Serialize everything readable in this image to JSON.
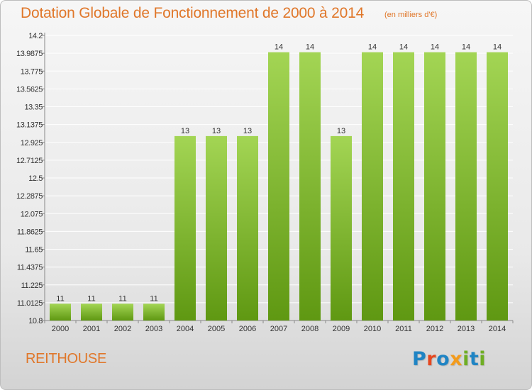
{
  "header": {
    "title": "Dotation Globale de Fonctionnement de 2000 à 2014",
    "unit": "(en milliers d'€)"
  },
  "footer": {
    "commune": "REITHOUSE",
    "logo": {
      "text": "Proxiti",
      "letters": [
        {
          "ch": "P",
          "color": "#1f84c4"
        },
        {
          "ch": "r",
          "color": "#e5471f"
        },
        {
          "ch": "o",
          "color": "#1f84c4"
        },
        {
          "ch": "x",
          "color": "#f39b1c"
        },
        {
          "ch": "i",
          "color": "#6fae24"
        },
        {
          "ch": "t",
          "color": "#1f84c4"
        },
        {
          "ch": "i",
          "color": "#6fae24"
        }
      ]
    }
  },
  "colors": {
    "title": "#e0772a",
    "bar_light": "#a3d554",
    "bar_dark": "#5f9812",
    "axis": "#888888",
    "grid": "#ffffff"
  },
  "chart_data": {
    "type": "bar",
    "title": "Dotation Globale de Fonctionnement de 2000 à 2014",
    "subtitle": "(en milliers d'€)",
    "xlabel": "",
    "ylabel": "",
    "categories": [
      "2000",
      "2001",
      "2002",
      "2003",
      "2004",
      "2005",
      "2006",
      "2007",
      "2008",
      "2009",
      "2010",
      "2011",
      "2012",
      "2013",
      "2014"
    ],
    "values": [
      11,
      11,
      11,
      11,
      13,
      13,
      13,
      14,
      14,
      13,
      14,
      14,
      14,
      14,
      14
    ],
    "data_labels": [
      "11",
      "11",
      "11",
      "11",
      "13",
      "13",
      "13",
      "14",
      "14",
      "13",
      "14",
      "14",
      "14",
      "14",
      "14"
    ],
    "y_ticks": [
      10.8,
      11.0125,
      11.225,
      11.4375,
      11.65,
      11.8625,
      12.075,
      12.2875,
      12.5,
      12.7125,
      12.925,
      13.1375,
      13.35,
      13.5625,
      13.775,
      13.9875,
      14.2
    ],
    "y_tick_labels": [
      "10.8",
      "11.0125",
      "11.225",
      "11.4375",
      "11.65",
      "11.8625",
      "12.075",
      "12.2875",
      "12.5",
      "12.7125",
      "12.925",
      "13.1375",
      "13.35",
      "13.5625",
      "13.775",
      "13.9875",
      "14.2"
    ],
    "ylim": [
      10.8,
      14.2
    ],
    "grid": true,
    "legend": "none"
  }
}
